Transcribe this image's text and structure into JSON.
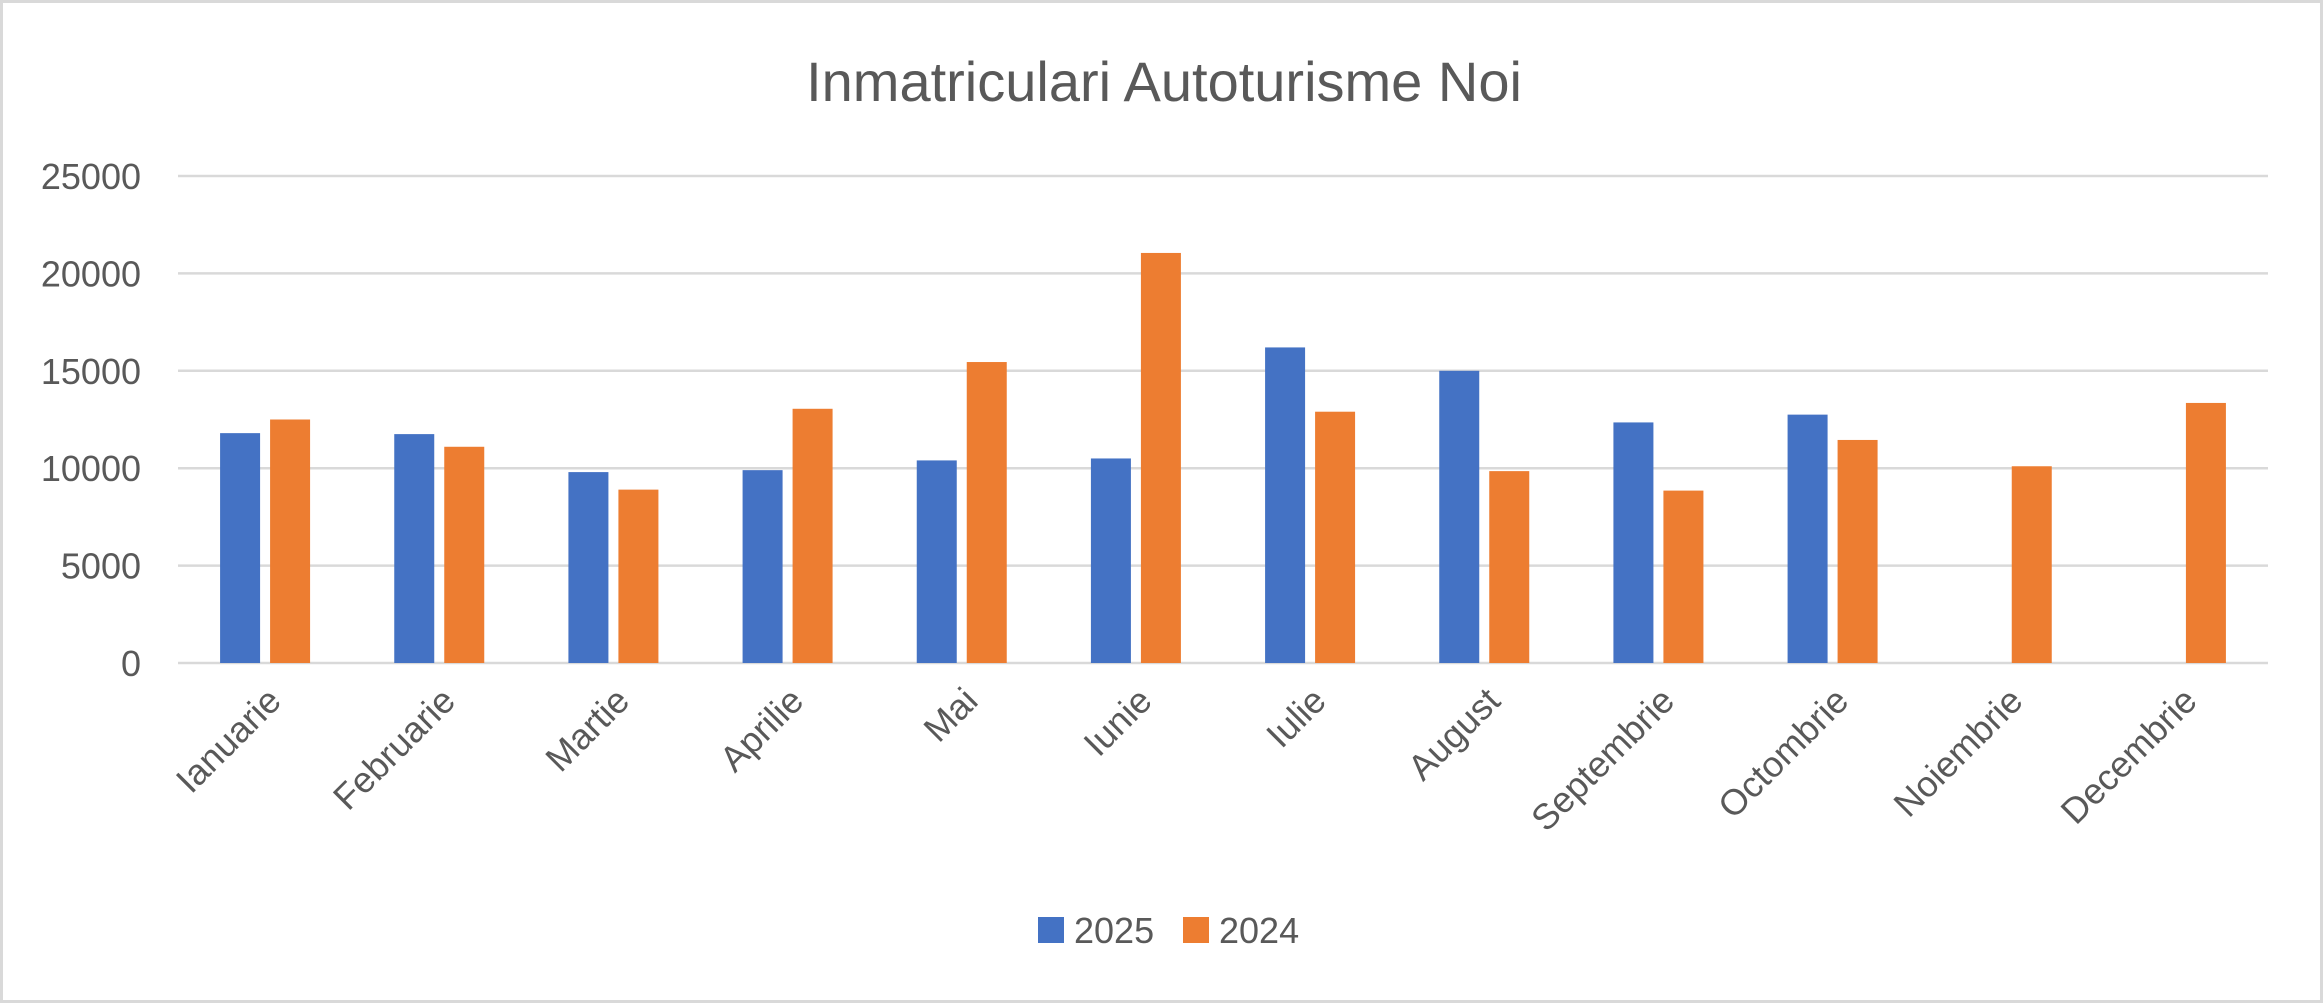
{
  "chart_data": {
    "type": "bar",
    "title": "Inmatriculari Autoturisme Noi",
    "xlabel": "",
    "ylabel": "",
    "categories": [
      "Ianuarie",
      "Februarie",
      "Martie",
      "Aprilie",
      "Mai",
      "Iunie",
      "Iulie",
      "August",
      "Septembrie",
      "Octombrie",
      "Noiembrie",
      "Decembrie"
    ],
    "series": [
      {
        "name": "2025",
        "color": "#4472C4",
        "values": [
          11800,
          11750,
          9800,
          9900,
          10400,
          10500,
          16200,
          15000,
          12350,
          12750,
          null,
          null
        ]
      },
      {
        "name": "2024",
        "color": "#ED7D31",
        "values": [
          12500,
          11100,
          8900,
          13050,
          15450,
          21050,
          12900,
          9850,
          8850,
          11450,
          10100,
          13350
        ]
      }
    ],
    "ylim": [
      0,
      25000
    ],
    "yticks": [
      0,
      5000,
      10000,
      15000,
      20000,
      25000
    ],
    "grid": true,
    "legend": "bottom-center"
  }
}
